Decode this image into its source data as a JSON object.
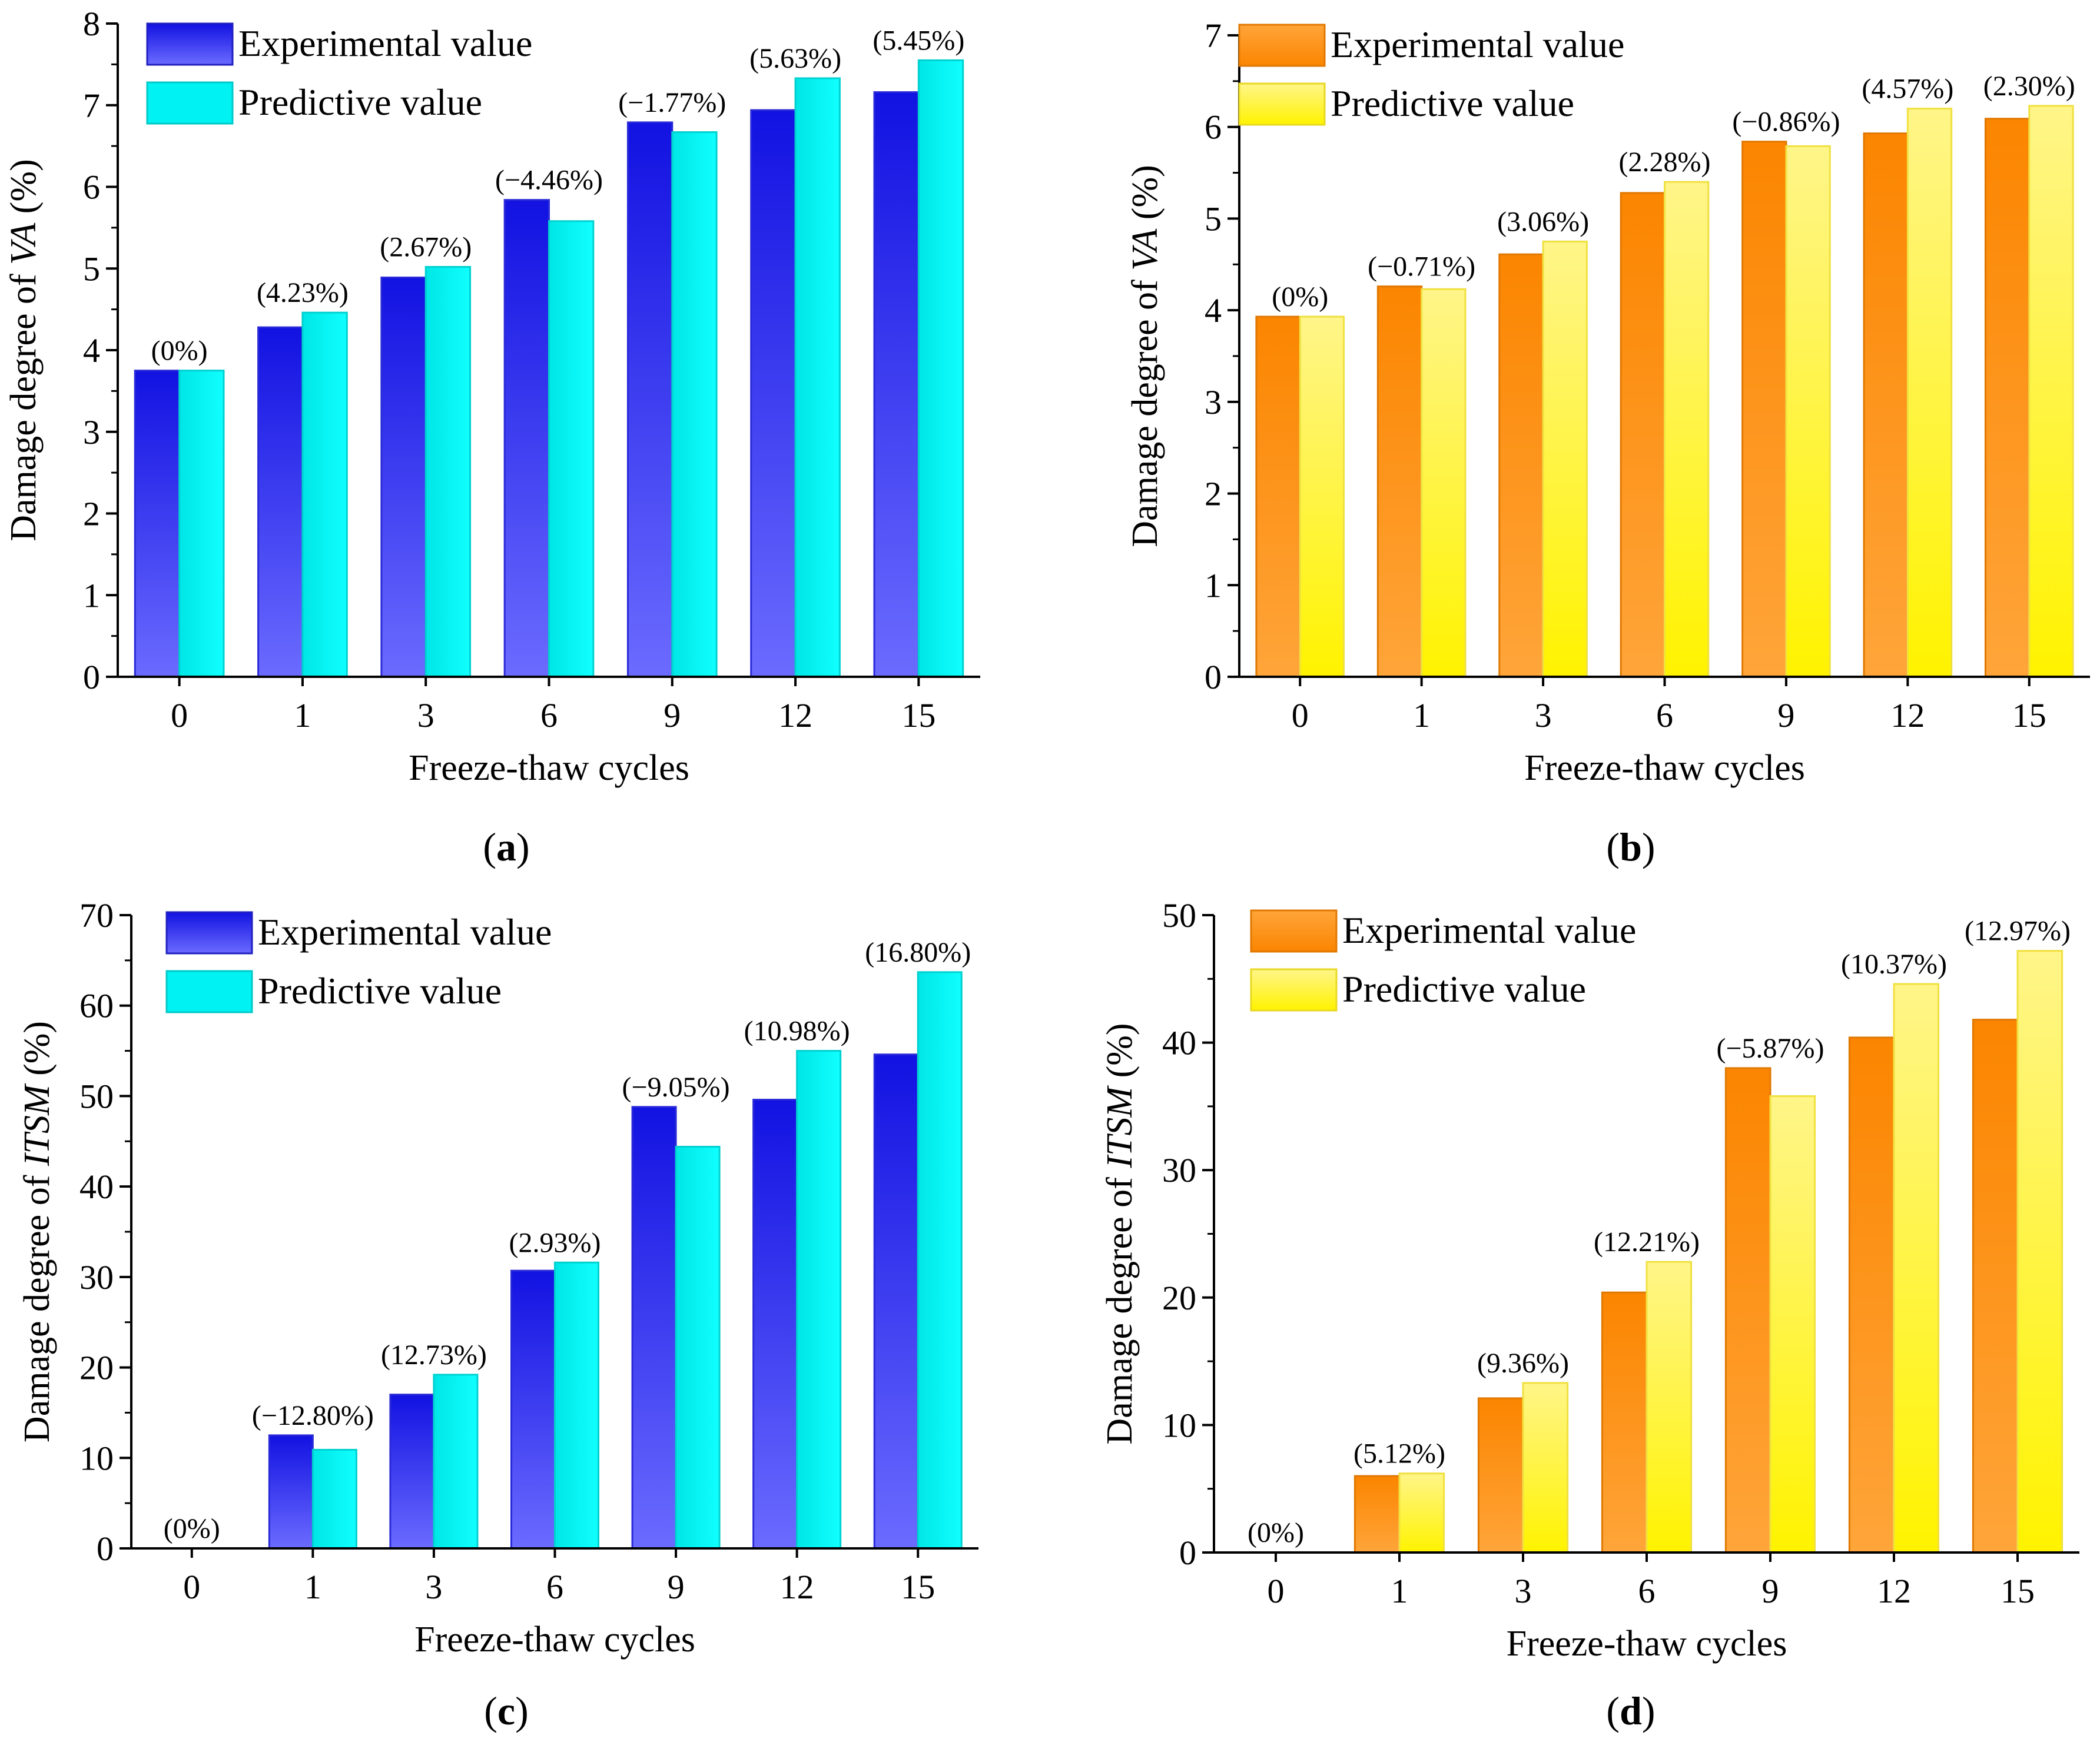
{
  "chart_data": [
    {
      "type": "bar",
      "panel": "a",
      "panel_label": "a",
      "palette": "blue",
      "categories": [
        "0",
        "1",
        "3",
        "6",
        "9",
        "12",
        "15"
      ],
      "series": [
        {
          "name": "Experimental value",
          "values": [
            3.75,
            4.28,
            4.89,
            5.84,
            6.79,
            6.94,
            7.16
          ]
        },
        {
          "name": "Predictive value",
          "values": [
            3.75,
            4.46,
            5.02,
            5.58,
            6.67,
            7.33,
            7.55
          ]
        }
      ],
      "data_labels": [
        "(0%)",
        "(4.23%)",
        "(2.67%)",
        "(−4.46%)",
        "(−1.77%)",
        "(5.63%)",
        "(5.45%)"
      ],
      "xlabel": "Freeze-thaw cycles",
      "ylabel_prefix": "Damage degree of ",
      "ylabel_italic": "VA",
      "ylabel_suffix": " (%)",
      "ylim": [
        0,
        8
      ],
      "yticks": [
        0,
        1,
        2,
        3,
        4,
        5,
        6,
        7,
        8
      ],
      "legend": "top-left"
    },
    {
      "type": "bar",
      "panel": "b",
      "panel_label": "b",
      "palette": "orange",
      "categories": [
        "0",
        "1",
        "3",
        "6",
        "9",
        "12",
        "15"
      ],
      "series": [
        {
          "name": "Experimental value",
          "values": [
            3.93,
            4.26,
            4.61,
            5.28,
            5.84,
            5.93,
            6.09
          ]
        },
        {
          "name": "Predictive value",
          "values": [
            3.93,
            4.23,
            4.75,
            5.4,
            5.79,
            6.2,
            6.23
          ]
        }
      ],
      "data_labels": [
        "(0%)",
        "(−0.71%)",
        "(3.06%)",
        "(2.28%)",
        "(−0.86%)",
        "(4.57%)",
        "(2.30%)"
      ],
      "xlabel": "Freeze-thaw cycles",
      "ylabel_prefix": "Damage degree of ",
      "ylabel_italic": "VA",
      "ylabel_suffix": " (%)",
      "ylim": [
        0,
        7
      ],
      "yticks": [
        0,
        1,
        2,
        3,
        4,
        5,
        6,
        7
      ],
      "legend": "top-left"
    },
    {
      "type": "bar",
      "panel": "c",
      "panel_label": "c",
      "palette": "blue",
      "categories": [
        "0",
        "1",
        "3",
        "6",
        "9",
        "12",
        "15"
      ],
      "series": [
        {
          "name": "Experimental value",
          "values": [
            0,
            12.5,
            17.0,
            30.7,
            48.8,
            49.6,
            54.6
          ]
        },
        {
          "name": "Predictive value",
          "values": [
            0,
            10.9,
            19.2,
            31.6,
            44.4,
            55.0,
            63.7
          ]
        }
      ],
      "data_labels": [
        "(0%)",
        "(−12.80%)",
        "(12.73%)",
        "(2.93%)",
        "(−9.05%)",
        "(10.98%)",
        "(16.80%)"
      ],
      "xlabel": "Freeze-thaw cycles",
      "ylabel_prefix": "Damage degree of ",
      "ylabel_italic": "ITSM",
      "ylabel_suffix": " (%)",
      "ylim": [
        0,
        70
      ],
      "yticks": [
        0,
        10,
        20,
        30,
        40,
        50,
        60,
        70
      ],
      "legend": "top-left"
    },
    {
      "type": "bar",
      "panel": "d",
      "panel_label": "d",
      "palette": "orange",
      "categories": [
        "0",
        "1",
        "3",
        "6",
        "9",
        "12",
        "15"
      ],
      "series": [
        {
          "name": "Experimental value",
          "values": [
            0,
            6.0,
            12.1,
            20.4,
            38.0,
            40.4,
            41.8
          ]
        },
        {
          "name": "Predictive value",
          "values": [
            0,
            6.2,
            13.3,
            22.8,
            35.8,
            44.6,
            47.2
          ]
        }
      ],
      "data_labels": [
        "(0%)",
        "(5.12%)",
        "(9.36%)",
        "(12.21%)",
        "(−5.87%)",
        "(10.37%)",
        "(12.97%)"
      ],
      "xlabel": "Freeze-thaw cycles",
      "ylabel_prefix": "Damage degree of ",
      "ylabel_italic": "ITSM",
      "ylabel_suffix": " (%)",
      "ylim": [
        0,
        50
      ],
      "yticks": [
        0,
        10,
        20,
        30,
        40,
        50
      ],
      "legend": "top-left"
    }
  ],
  "colors": {
    "blue_experimental_top": "#1414e6",
    "blue_experimental_bottom": "#6a6aff",
    "blue_predictive": "#00f2f2",
    "orange_experimental": "#fb8c0a",
    "orange_experimental_light": "#ffb040",
    "yellow_predictive_top": "#fff27a",
    "yellow_predictive_bottom": "#fff200",
    "axis": "#000000"
  }
}
